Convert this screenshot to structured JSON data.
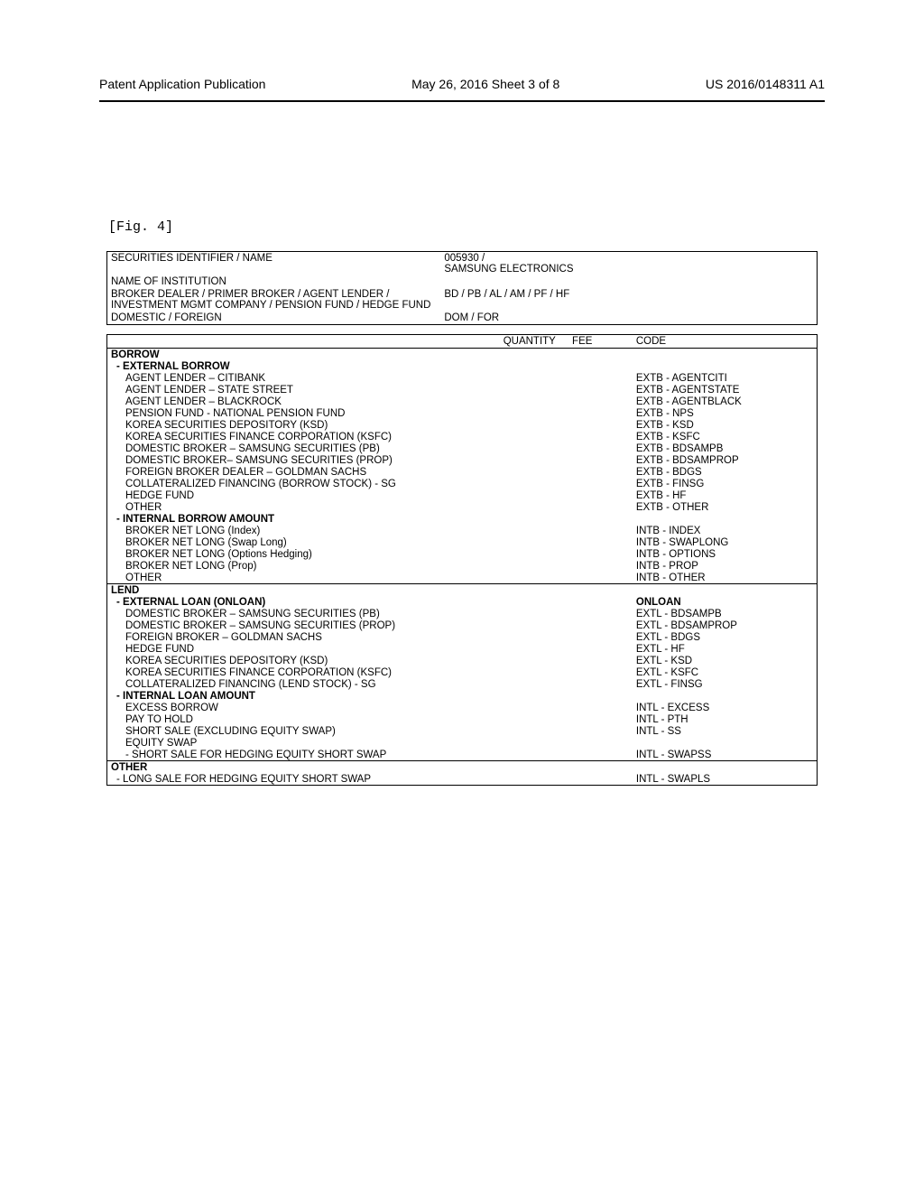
{
  "header": {
    "left": "Patent Application Publication",
    "center": "May 26, 2016  Sheet 3 of 8",
    "right": "US 2016/0148311 A1"
  },
  "fig_label": "[Fig. 4]",
  "info_table": {
    "rows": [
      {
        "label": "SECURITIES IDENTIFIER / NAME",
        "value": "005930 /\nSAMSUNG ELECTRONICS"
      },
      {
        "label": "NAME OF INSTITUTION",
        "value": ""
      },
      {
        "label": "BROKER DEALER / PRIMER BROKER / AGENT LENDER / INVESTMENT MGMT COMPANY / PENSION FUND / HEDGE FUND",
        "value": "BD / PB / AL / AM / PF / HF"
      },
      {
        "label": "DOMESTIC / FOREIGN",
        "value": "DOM / FOR"
      }
    ]
  },
  "data_table": {
    "headers": {
      "desc": "",
      "qty": "QUANTITY",
      "fee": "FEE",
      "code": "CODE"
    },
    "rows": [
      {
        "type": "section",
        "desc": "BORROW",
        "code": ""
      },
      {
        "type": "subsection",
        "desc": "- EXTERNAL BORROW",
        "code": ""
      },
      {
        "type": "item",
        "desc": "AGENT LENDER – CITIBANK",
        "code": "EXTB - AGENTCITI"
      },
      {
        "type": "item",
        "desc": "AGENT LENDER – STATE STREET",
        "code": "EXTB - AGENTSTATE"
      },
      {
        "type": "item",
        "desc": "AGENT LENDER – BLACKROCK",
        "code": "EXTB - AGENTBLACK"
      },
      {
        "type": "item",
        "desc": "PENSION FUND  - NATIONAL PENSION FUND",
        "code": "EXTB - NPS"
      },
      {
        "type": "item",
        "desc": "KOREA SECURITIES DEPOSITORY (KSD)",
        "code": "EXTB - KSD"
      },
      {
        "type": "item",
        "desc": "KOREA SECURITIES FINANCE CORPORATION (KSFC)",
        "code": "EXTB - KSFC"
      },
      {
        "type": "item",
        "desc": "DOMESTIC BROKER  – SAMSUNG SECURITIES (PB)",
        "code": "EXTB - BDSAMPB"
      },
      {
        "type": "item",
        "desc": "DOMESTIC BROKER– SAMSUNG SECURITIES (PROP)",
        "code": "EXTB - BDSAMPROP"
      },
      {
        "type": "item",
        "desc": "FOREIGN BROKER DEALER – GOLDMAN SACHS",
        "code": "EXTB - BDGS"
      },
      {
        "type": "item",
        "desc": "COLLATERALIZED FINANCING (BORROW STOCK) - SG",
        "code": "EXTB - FINSG"
      },
      {
        "type": "item",
        "desc": "HEDGE FUND",
        "code": "EXTB - HF"
      },
      {
        "type": "item",
        "desc": "OTHER",
        "code": "EXTB - OTHER"
      },
      {
        "type": "subsection",
        "desc": "- INTERNAL BORROW AMOUNT",
        "code": ""
      },
      {
        "type": "item",
        "desc": "BROKER  NET LONG (Index)",
        "code": "INTB - INDEX"
      },
      {
        "type": "item",
        "desc": "BROKER  NET LONG (Swap Long)",
        "code": "INTB - SWAPLONG"
      },
      {
        "type": "item",
        "desc": "BROKER  NET LONG (Options Hedging)",
        "code": "INTB - OPTIONS"
      },
      {
        "type": "item",
        "desc": "BROKER  NET LONG (Prop)",
        "code": "INTB - PROP"
      },
      {
        "type": "item",
        "desc": "OTHER",
        "code": "INTB - OTHER"
      },
      {
        "type": "section",
        "desc": "LEND",
        "code": ""
      },
      {
        "type": "subsection",
        "desc": "- EXTERNAL LOAN (ONLOAN)",
        "code": "ONLOAN"
      },
      {
        "type": "item",
        "desc": "DOMESTIC BROKER – SAMSUNG SECURITIES (PB)",
        "code": "EXTL - BDSAMPB"
      },
      {
        "type": "item",
        "desc": "DOMESTIC BROKER – SAMSUNG SECURITIES (PROP)",
        "code": "EXTL - BDSAMPROP"
      },
      {
        "type": "item",
        "desc": "FOREIGN BROKER – GOLDMAN SACHS",
        "code": "EXTL - BDGS"
      },
      {
        "type": "item",
        "desc": "HEDGE FUND",
        "code": "EXTL - HF"
      },
      {
        "type": "item",
        "desc": "KOREA SECURITIES DEPOSITORY (KSD)",
        "code": "EXTL - KSD"
      },
      {
        "type": "item",
        "desc": "KOREA SECURITIES FINANCE CORPORATION (KSFC)",
        "code": "EXTL - KSFC"
      },
      {
        "type": "item",
        "desc": "COLLATERALIZED FINANCING (LEND STOCK) - SG",
        "code": "EXTL - FINSG"
      },
      {
        "type": "subsection",
        "desc": "- INTERNAL LOAN AMOUNT",
        "code": ""
      },
      {
        "type": "item",
        "desc": "EXCESS BORROW",
        "code": "INTL - EXCESS"
      },
      {
        "type": "item",
        "desc": "PAY TO HOLD",
        "code": "INTL - PTH"
      },
      {
        "type": "item",
        "desc": "SHORT SALE (EXCLUDING EQUITY SWAP)",
        "code": "INTL - SS"
      },
      {
        "type": "item",
        "desc": "EQUITY SWAP",
        "code": ""
      },
      {
        "type": "item",
        "desc": "- SHORT SALE FOR HEDGING EQUITY SHORT SWAP",
        "code": "INTL - SWAPSS"
      },
      {
        "type": "section",
        "desc": "OTHER",
        "code": ""
      },
      {
        "type": "sub-plain",
        "desc": "- LONG SALE FOR HEDGING EQUITY SHORT SWAP",
        "code": "INTL - SWAPLS"
      }
    ]
  }
}
